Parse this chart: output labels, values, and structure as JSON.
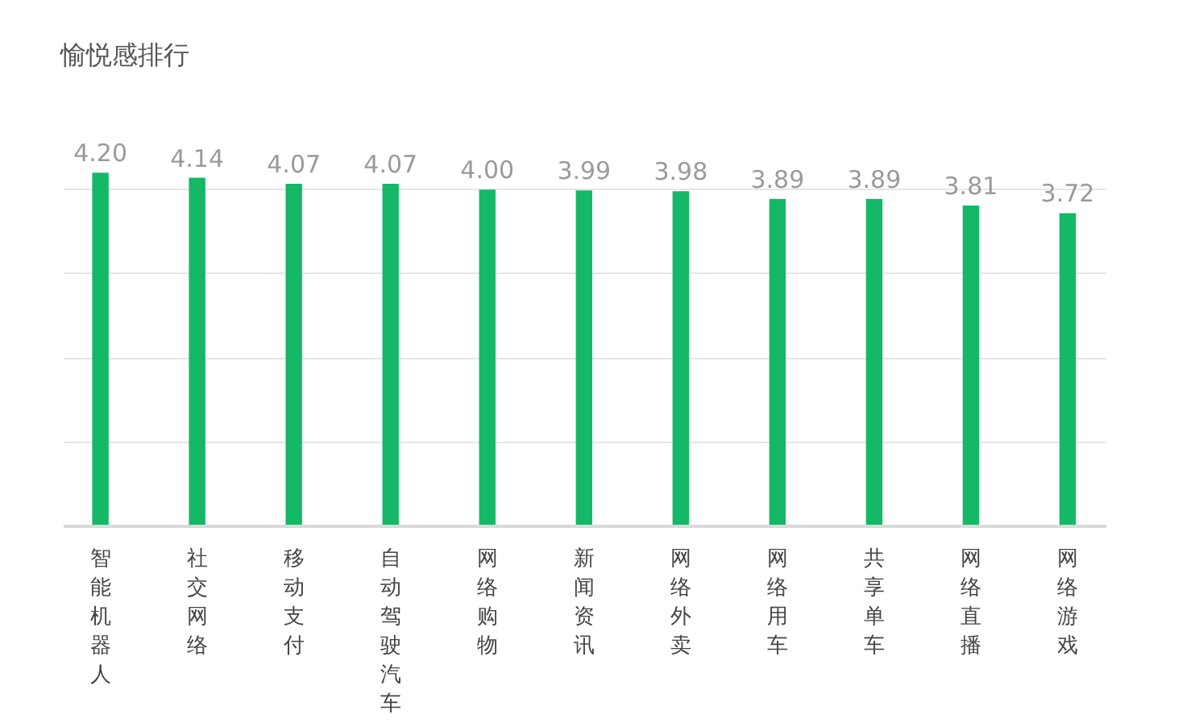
{
  "chart_data": {
    "type": "bar",
    "title": "愉悦感排行",
    "categories": [
      "智能机器人",
      "社交网络",
      "移动支付",
      "自动驾驶汽车",
      "网络购物",
      "新闻资讯",
      "网络外卖",
      "网络用车",
      "共享单车",
      "网络直播",
      "网络游戏"
    ],
    "values": [
      4.2,
      4.14,
      4.07,
      4.07,
      4.0,
      3.99,
      3.98,
      3.89,
      3.89,
      3.81,
      3.72
    ],
    "value_labels": [
      "4.20",
      "4.14",
      "4.07",
      "4.07",
      "4.00",
      "3.99",
      "3.98",
      "3.89",
      "3.89",
      "3.81",
      "3.72"
    ],
    "color": "#14b866",
    "yticks": [
      {
        "value": 0,
        "label": null
      },
      {
        "value": 1,
        "label": null
      },
      {
        "value": 2,
        "label": null
      },
      {
        "value": 3,
        "label": null
      },
      {
        "value": 4,
        "label": null
      }
    ],
    "grid": "y",
    "tick_labels": "x"
  }
}
